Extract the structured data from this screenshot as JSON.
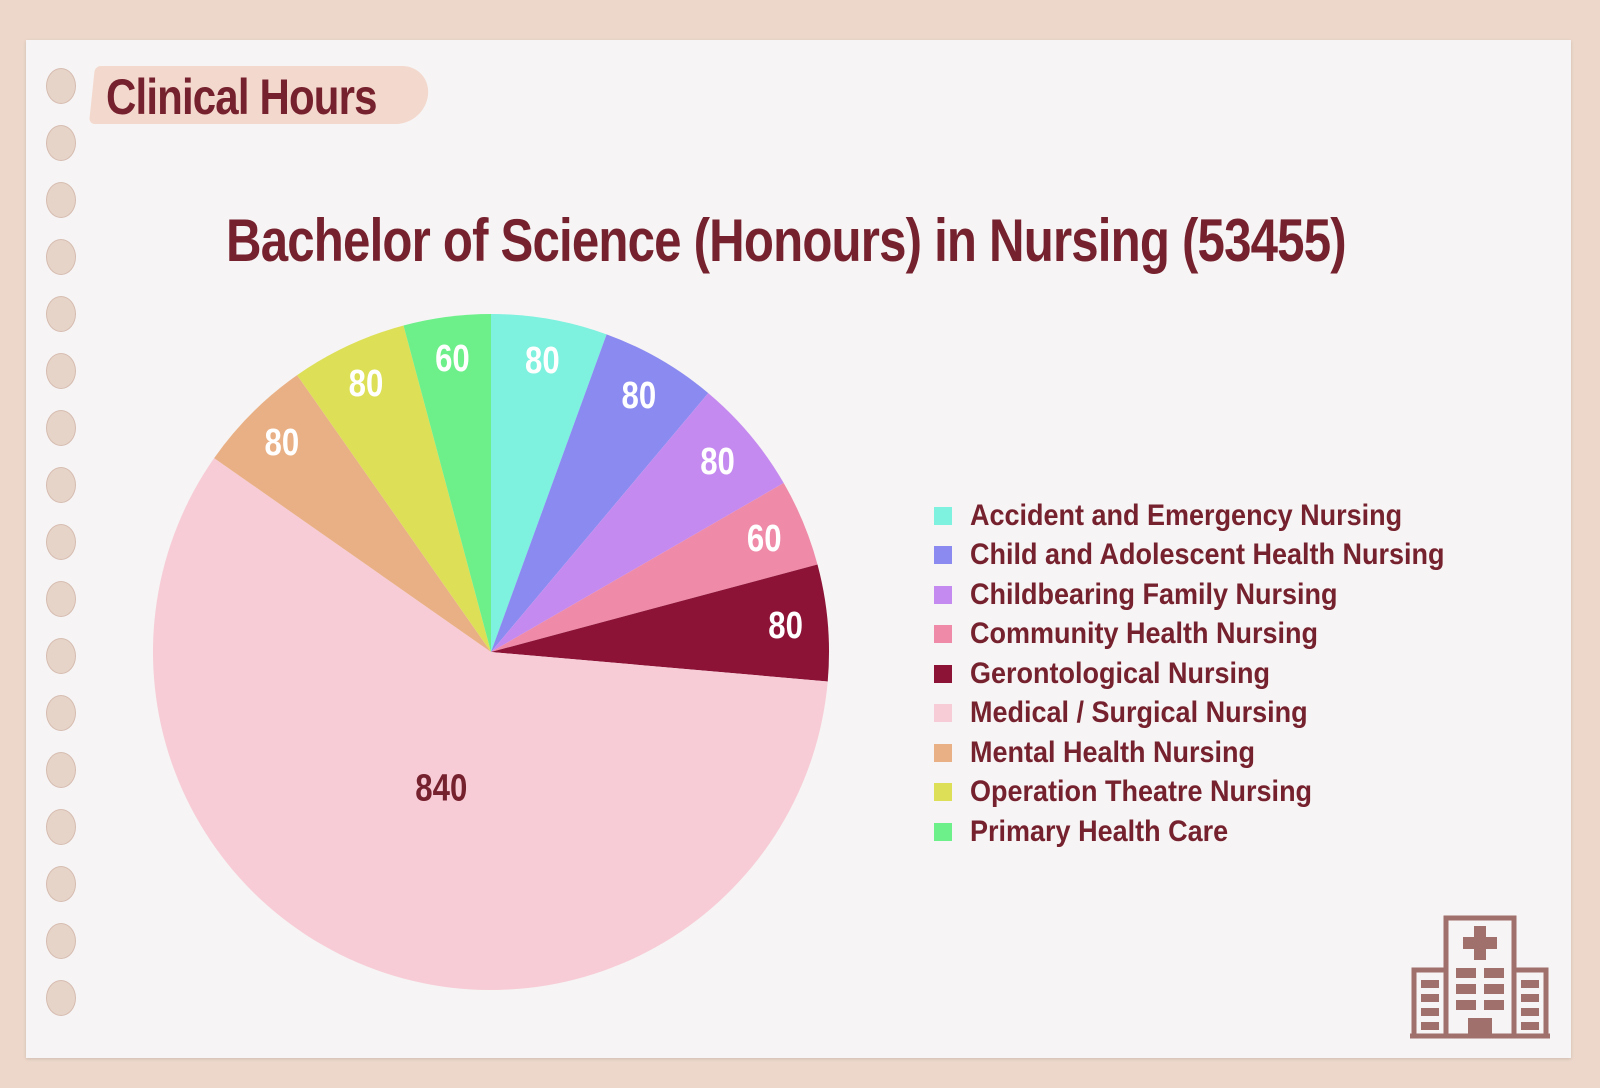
{
  "header": {
    "tag": "Clinical Hours"
  },
  "chart_data": {
    "type": "pie",
    "title": "Bachelor of Science (Honours) in Nursing (53455)",
    "legend_position": "right",
    "slices": [
      {
        "label": "Accident and Emergency Nursing",
        "value": 80,
        "color": "#7ef1df",
        "label_color": "#ffffff"
      },
      {
        "label": "Child and Adolescent Health Nursing",
        "value": 80,
        "color": "#8a8af1",
        "label_color": "#ffffff"
      },
      {
        "label": "Childbearing Family Nursing",
        "value": 80,
        "color": "#c58af0",
        "label_color": "#ffffff"
      },
      {
        "label": "Community Health Nursing",
        "value": 60,
        "color": "#ef8aa8",
        "label_color": "#ffffff"
      },
      {
        "label": "Gerontological Nursing",
        "value": 80,
        "color": "#8c1236",
        "label_color": "#ffffff"
      },
      {
        "label": "Medical / Surgical Nursing",
        "value": 840,
        "color": "#f7ccd6",
        "label_color": "#76212e"
      },
      {
        "label": "Mental Health Nursing",
        "value": 80,
        "color": "#e9b085",
        "label_color": "#ffffff"
      },
      {
        "label": "Operation Theatre Nursing",
        "value": 80,
        "color": "#dde057",
        "label_color": "#ffffff"
      },
      {
        "label": "Primary Health Care",
        "value": 60,
        "color": "#6df08a",
        "label_color": "#ffffff"
      }
    ]
  },
  "icons": {
    "decoration": "hospital-building-icon"
  }
}
